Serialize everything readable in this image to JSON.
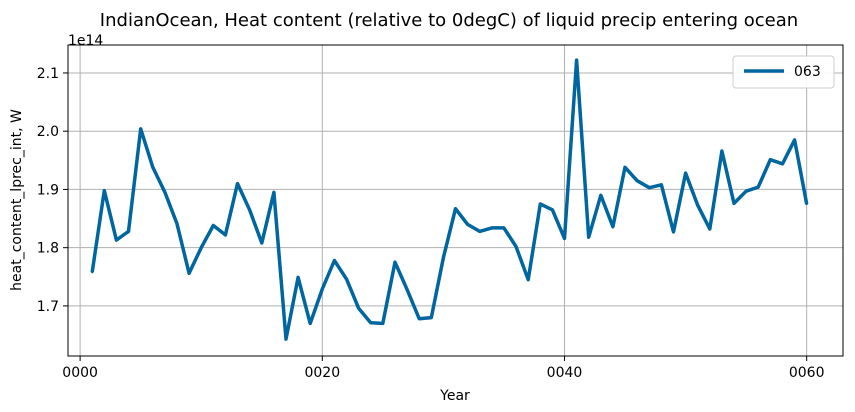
{
  "chart_data": {
    "type": "line",
    "title": "IndianOcean, Heat content (relative to 0degC) of liquid precip entering ocean",
    "xlabel": "Year",
    "ylabel": "heat_content_lprec_int, W",
    "y_offset_label": "1e14",
    "xlim": [
      -1,
      63
    ],
    "ylim": [
      1.614,
      2.148
    ],
    "x_ticks": [
      0,
      20,
      40,
      60
    ],
    "x_tick_labels": [
      "0000",
      "0020",
      "0040",
      "0060"
    ],
    "y_ticks": [
      1.7,
      1.8,
      1.9,
      2.0,
      2.1
    ],
    "y_tick_labels": [
      "1.7",
      "1.8",
      "1.9",
      "2.0",
      "2.1"
    ],
    "grid": true,
    "legend_position": "top-right",
    "colors": {
      "series": "#0066a0",
      "grid": "#b0b0b0",
      "axes": "#000000"
    },
    "series": [
      {
        "name": "063",
        "x": [
          1,
          2,
          3,
          4,
          5,
          6,
          7,
          8,
          9,
          10,
          11,
          12,
          13,
          14,
          15,
          16,
          17,
          18,
          19,
          20,
          21,
          22,
          23,
          24,
          25,
          26,
          27,
          28,
          29,
          30,
          31,
          32,
          33,
          34,
          35,
          36,
          37,
          38,
          39,
          40,
          41,
          42,
          43,
          44,
          45,
          46,
          47,
          48,
          49,
          50,
          51,
          52,
          53,
          54,
          55,
          56,
          57,
          58,
          59,
          60
        ],
        "values": [
          1.758,
          1.898,
          1.813,
          1.828,
          2.004,
          1.938,
          1.895,
          1.841,
          1.756,
          1.8,
          1.838,
          1.822,
          1.91,
          1.865,
          1.808,
          1.895,
          1.643,
          1.749,
          1.67,
          1.729,
          1.778,
          1.746,
          1.696,
          1.671,
          1.67,
          1.775,
          1.728,
          1.678,
          1.68,
          1.783,
          1.867,
          1.84,
          1.828,
          1.834,
          1.834,
          1.802,
          1.745,
          1.875,
          1.865,
          1.816,
          2.122,
          1.818,
          1.89,
          1.836,
          1.938,
          1.915,
          1.903,
          1.908,
          1.827,
          1.928,
          1.873,
          1.832,
          1.966,
          1.876,
          1.897,
          1.904,
          1.951,
          1.944,
          1.985,
          1.875
        ]
      }
    ]
  }
}
